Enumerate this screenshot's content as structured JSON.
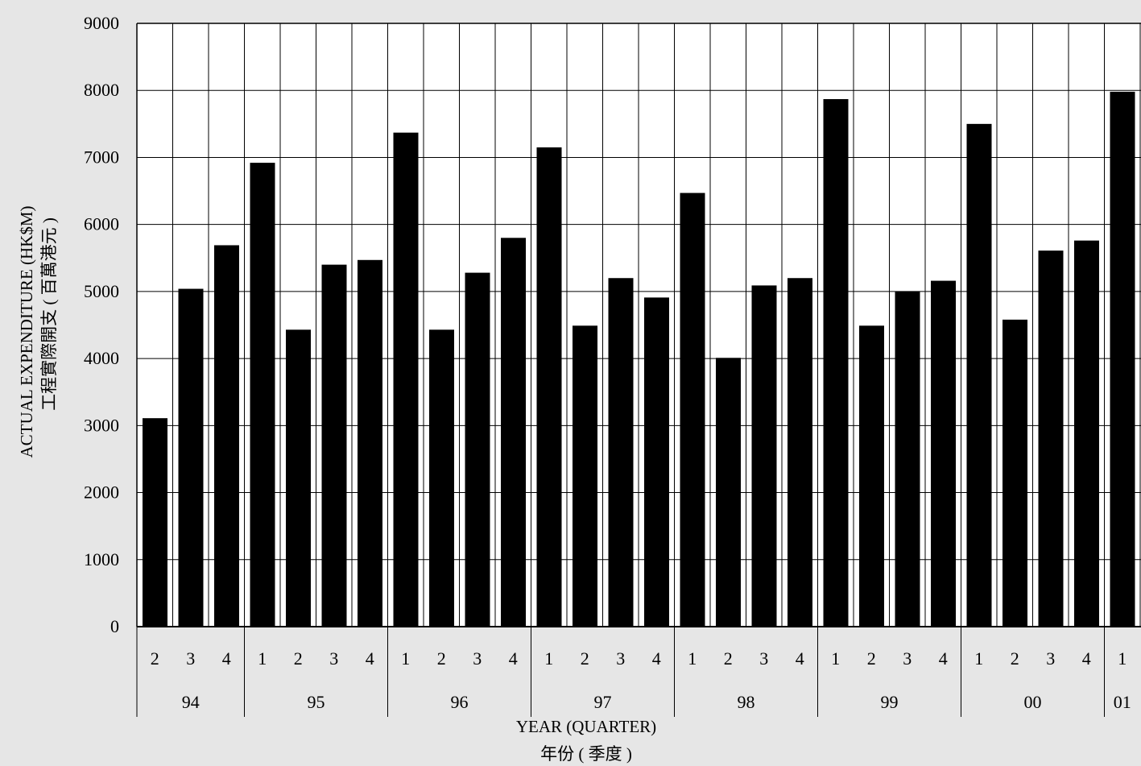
{
  "chart_data": {
    "type": "bar",
    "title": "",
    "ylabel_en": "ACTUAL EXPENDITURE (HK$M)",
    "ylabel_zh": "工程實際開支 ( 百萬港元 )",
    "xlabel_en": "YEAR (QUARTER)",
    "xlabel_zh": "年份 ( 季度 )",
    "ylim": [
      0,
      9000
    ],
    "yticks": [
      "0",
      "1000",
      "2000",
      "3000",
      "4000",
      "5000",
      "6000",
      "7000",
      "8000",
      "9000"
    ],
    "grid": true,
    "bar_color": "#000000",
    "background": "#ffffff",
    "categories": [
      "2",
      "3",
      "4",
      "1",
      "2",
      "3",
      "4",
      "1",
      "2",
      "3",
      "4",
      "1",
      "2",
      "3",
      "4",
      "1",
      "2",
      "3",
      "4",
      "1",
      "2",
      "3",
      "4",
      "1",
      "2",
      "3",
      "4",
      "1"
    ],
    "values": [
      3110,
      5040,
      5690,
      6920,
      4430,
      5400,
      5470,
      7370,
      4430,
      5280,
      5800,
      7150,
      4490,
      5200,
      4910,
      6470,
      4010,
      5090,
      5200,
      7870,
      4490,
      5000,
      5160,
      7500,
      4580,
      5610,
      5760,
      7980
    ],
    "years": [
      {
        "label": "94",
        "quarters": 3
      },
      {
        "label": "95",
        "quarters": 4
      },
      {
        "label": "96",
        "quarters": 4
      },
      {
        "label": "97",
        "quarters": 4
      },
      {
        "label": "98",
        "quarters": 4
      },
      {
        "label": "99",
        "quarters": 4
      },
      {
        "label": "00",
        "quarters": 4
      },
      {
        "label": "01",
        "quarters": 1
      }
    ]
  }
}
